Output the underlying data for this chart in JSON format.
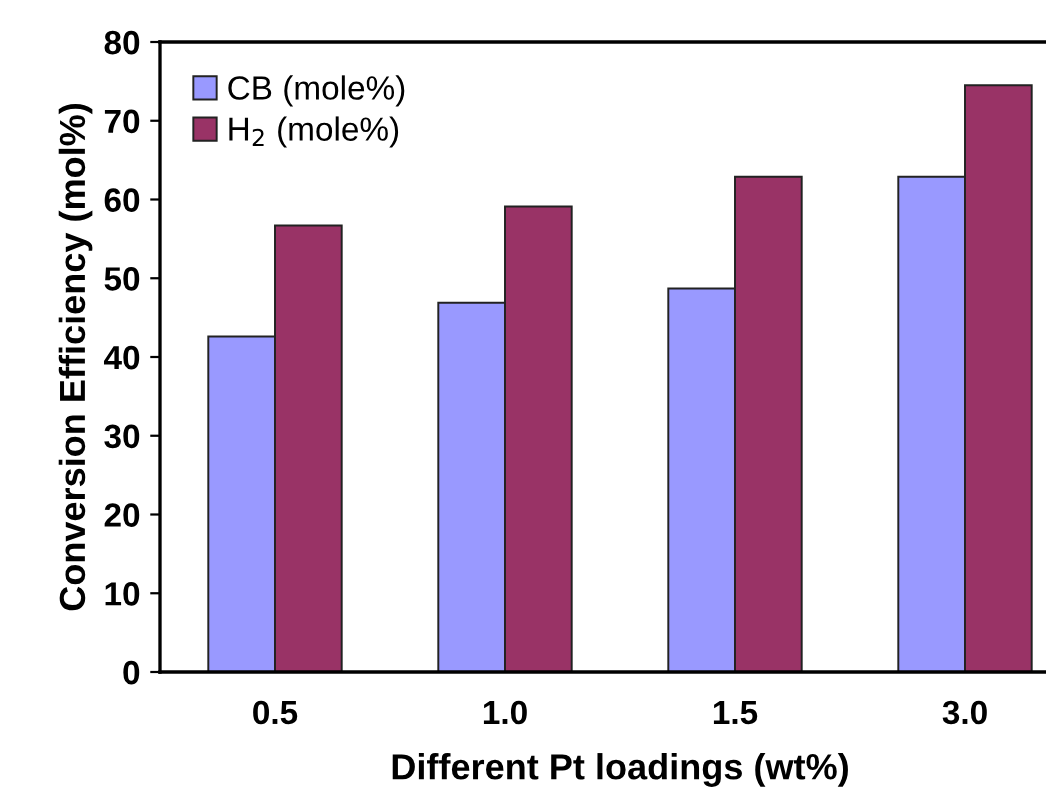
{
  "chart_data": {
    "type": "bar",
    "xlabel": "Different Pt loadings (wt%)",
    "ylabel": "Conversion Efficiency (mol%)",
    "categories": [
      "0.5",
      "1.0",
      "1.5",
      "3.0"
    ],
    "series": [
      {
        "name": "CB (mole%)",
        "color": "#9999ff",
        "values": [
          42.6,
          46.9,
          48.7,
          62.9
        ]
      },
      {
        "name": "H$_{2}$ (mole%)",
        "color": "#993366",
        "values": [
          56.7,
          59.1,
          62.9,
          74.5
        ]
      }
    ],
    "ylim": [
      0,
      80
    ],
    "yticks": [
      0,
      10,
      20,
      30,
      40,
      50,
      60,
      70,
      80
    ],
    "grid": false,
    "legend": "top left"
  }
}
